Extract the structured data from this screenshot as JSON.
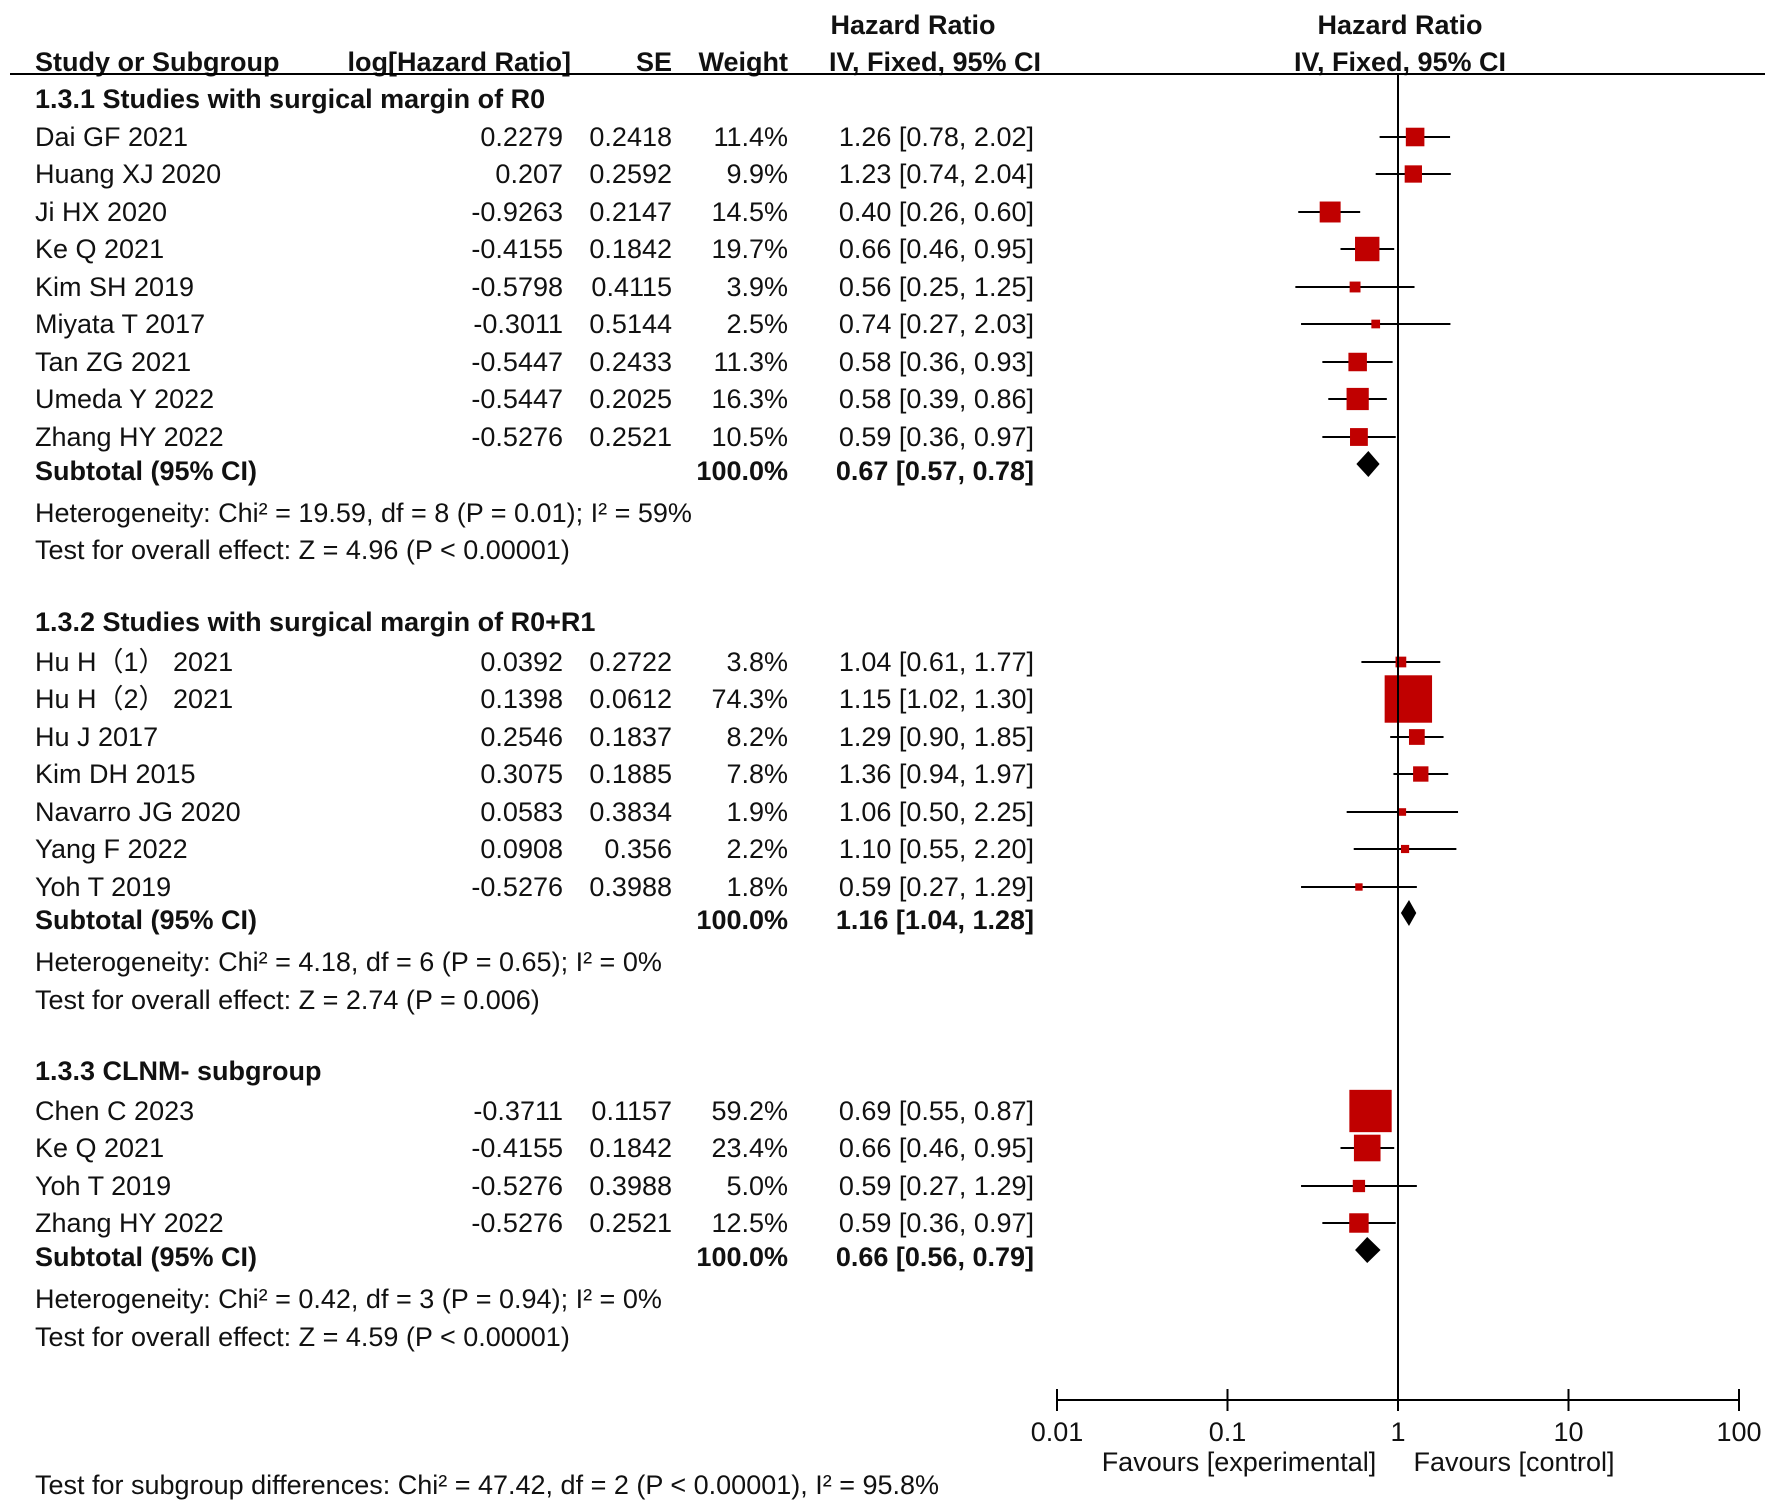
{
  "chart_data": {
    "type": "forest",
    "headers": {
      "hr_top": "Hazard Ratio",
      "study": "Study or Subgroup",
      "log_hr": "log[Hazard Ratio]",
      "se": "SE",
      "weight": "Weight",
      "ci": "IV, Fixed, 95% CI",
      "plot_top": "Hazard Ratio",
      "plot_sub": "IV, Fixed, 95% CI"
    },
    "subgroups": [
      {
        "title": "1.3.1 Studies with surgical margin of R0",
        "studies": [
          {
            "name": "Dai GF 2021",
            "log_hr": "0.2279",
            "se": "0.2418",
            "weight": "11.4%",
            "ci_text": "1.26 [0.78, 2.02]",
            "hr": 1.26,
            "lo": 0.78,
            "hi": 2.02,
            "w": 11.4
          },
          {
            "name": "Huang XJ 2020",
            "log_hr": "0.207",
            "se": "0.2592",
            "weight": "9.9%",
            "ci_text": "1.23 [0.74, 2.04]",
            "hr": 1.23,
            "lo": 0.74,
            "hi": 2.04,
            "w": 9.9
          },
          {
            "name": "Ji HX 2020",
            "log_hr": "-0.9263",
            "se": "0.2147",
            "weight": "14.5%",
            "ci_text": "0.40 [0.26, 0.60]",
            "hr": 0.4,
            "lo": 0.26,
            "hi": 0.6,
            "w": 14.5
          },
          {
            "name": "Ke Q 2021",
            "log_hr": "-0.4155",
            "se": "0.1842",
            "weight": "19.7%",
            "ci_text": "0.66 [0.46, 0.95]",
            "hr": 0.66,
            "lo": 0.46,
            "hi": 0.95,
            "w": 19.7
          },
          {
            "name": "Kim SH 2019",
            "log_hr": "-0.5798",
            "se": "0.4115",
            "weight": "3.9%",
            "ci_text": "0.56 [0.25, 1.25]",
            "hr": 0.56,
            "lo": 0.25,
            "hi": 1.25,
            "w": 3.9
          },
          {
            "name": "Miyata T 2017",
            "log_hr": "-0.3011",
            "se": "0.5144",
            "weight": "2.5%",
            "ci_text": "0.74 [0.27, 2.03]",
            "hr": 0.74,
            "lo": 0.27,
            "hi": 2.03,
            "w": 2.5
          },
          {
            "name": "Tan ZG 2021",
            "log_hr": "-0.5447",
            "se": "0.2433",
            "weight": "11.3%",
            "ci_text": "0.58 [0.36, 0.93]",
            "hr": 0.58,
            "lo": 0.36,
            "hi": 0.93,
            "w": 11.3
          },
          {
            "name": "Umeda Y 2022",
            "log_hr": "-0.5447",
            "se": "0.2025",
            "weight": "16.3%",
            "ci_text": "0.58 [0.39, 0.86]",
            "hr": 0.58,
            "lo": 0.39,
            "hi": 0.86,
            "w": 16.3
          },
          {
            "name": "Zhang HY 2022",
            "log_hr": "-0.5276",
            "se": "0.2521",
            "weight": "10.5%",
            "ci_text": "0.59 [0.36, 0.97]",
            "hr": 0.59,
            "lo": 0.36,
            "hi": 0.97,
            "w": 10.5
          }
        ],
        "subtotal": {
          "label": "Subtotal (95% CI)",
          "weight": "100.0%",
          "ci_text": "0.67 [0.57, 0.78]",
          "hr": 0.67,
          "lo": 0.57,
          "hi": 0.78
        },
        "heterogeneity": "Heterogeneity: Chi² = 19.59, df = 8 (P = 0.01); I² = 59%",
        "overall": "Test for overall effect: Z = 4.96 (P < 0.00001)"
      },
      {
        "title": "1.3.2 Studies with surgical margin of R0+R1",
        "studies": [
          {
            "name": "Hu H（1） 2021",
            "log_hr": "0.0392",
            "se": "0.2722",
            "weight": "3.8%",
            "ci_text": "1.04 [0.61, 1.77]",
            "hr": 1.04,
            "lo": 0.61,
            "hi": 1.77,
            "w": 3.8
          },
          {
            "name": "Hu H（2） 2021",
            "log_hr": "0.1398",
            "se": "0.0612",
            "weight": "74.3%",
            "ci_text": "1.15 [1.02, 1.30]",
            "hr": 1.15,
            "lo": 1.02,
            "hi": 1.3,
            "w": 74.3
          },
          {
            "name": "Hu J 2017",
            "log_hr": "0.2546",
            "se": "0.1837",
            "weight": "8.2%",
            "ci_text": "1.29 [0.90, 1.85]",
            "hr": 1.29,
            "lo": 0.9,
            "hi": 1.85,
            "w": 8.2
          },
          {
            "name": "Kim DH 2015",
            "log_hr": "0.3075",
            "se": "0.1885",
            "weight": "7.8%",
            "ci_text": "1.36 [0.94, 1.97]",
            "hr": 1.36,
            "lo": 0.94,
            "hi": 1.97,
            "w": 7.8
          },
          {
            "name": "Navarro JG 2020",
            "log_hr": "0.0583",
            "se": "0.3834",
            "weight": "1.9%",
            "ci_text": "1.06 [0.50, 2.25]",
            "hr": 1.06,
            "lo": 0.5,
            "hi": 2.25,
            "w": 1.9
          },
          {
            "name": "Yang F 2022",
            "log_hr": "0.0908",
            "se": "0.356",
            "weight": "2.2%",
            "ci_text": "1.10 [0.55, 2.20]",
            "hr": 1.1,
            "lo": 0.55,
            "hi": 2.2,
            "w": 2.2
          },
          {
            "name": "Yoh T 2019",
            "log_hr": "-0.5276",
            "se": "0.3988",
            "weight": "1.8%",
            "ci_text": "0.59 [0.27, 1.29]",
            "hr": 0.59,
            "lo": 0.27,
            "hi": 1.29,
            "w": 1.8
          }
        ],
        "subtotal": {
          "label": "Subtotal (95% CI)",
          "weight": "100.0%",
          "ci_text": "1.16 [1.04, 1.28]",
          "hr": 1.16,
          "lo": 1.04,
          "hi": 1.28
        },
        "heterogeneity": "Heterogeneity: Chi² = 4.18, df = 6 (P = 0.65); I² = 0%",
        "overall": "Test for overall effect: Z = 2.74 (P = 0.006)"
      },
      {
        "title": "1.3.3 CLNM- subgroup",
        "studies": [
          {
            "name": "Chen C 2023",
            "log_hr": "-0.3711",
            "se": "0.1157",
            "weight": "59.2%",
            "ci_text": "0.69 [0.55, 0.87]",
            "hr": 0.69,
            "lo": 0.55,
            "hi": 0.87,
            "w": 59.2
          },
          {
            "name": "Ke Q 2021",
            "log_hr": "-0.4155",
            "se": "0.1842",
            "weight": "23.4%",
            "ci_text": "0.66 [0.46, 0.95]",
            "hr": 0.66,
            "lo": 0.46,
            "hi": 0.95,
            "w": 23.4
          },
          {
            "name": "Yoh T 2019",
            "log_hr": "-0.5276",
            "se": "0.3988",
            "weight": "5.0%",
            "ci_text": "0.59 [0.27, 1.29]",
            "hr": 0.59,
            "lo": 0.27,
            "hi": 1.29,
            "w": 5.0
          },
          {
            "name": "Zhang HY 2022",
            "log_hr": "-0.5276",
            "se": "0.2521",
            "weight": "12.5%",
            "ci_text": "0.59 [0.36, 0.97]",
            "hr": 0.59,
            "lo": 0.36,
            "hi": 0.97,
            "w": 12.5
          }
        ],
        "subtotal": {
          "label": "Subtotal (95% CI)",
          "weight": "100.0%",
          "ci_text": "0.66 [0.56, 0.79]",
          "hr": 0.66,
          "lo": 0.56,
          "hi": 0.79
        },
        "heterogeneity": "Heterogeneity: Chi² = 0.42, df = 3 (P = 0.94); I² = 0%",
        "overall": "Test for overall effect: Z = 4.59 (P < 0.00001)"
      }
    ],
    "axis": {
      "scale": "log",
      "range": [
        0.01,
        100
      ],
      "ticks": [
        0.01,
        0.1,
        1,
        10,
        100
      ],
      "tick_labels": [
        "0.01",
        "0.1",
        "1",
        "10",
        "100"
      ],
      "reference": 1,
      "favours_left": "Favours [experimental]",
      "favours_right": "Favours [control]"
    },
    "subgroup_test": "Test for subgroup differences: Chi² = 47.42, df = 2 (P < 0.00001), I² = 95.8%",
    "colors": {
      "square": "#c00000",
      "diamond": "#000000",
      "line": "#000000"
    }
  }
}
